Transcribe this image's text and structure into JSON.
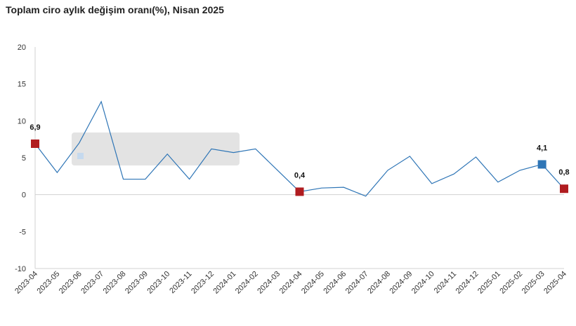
{
  "chart_data": {
    "type": "line",
    "title": "Toplam ciro aylık değişim oranı(%), Nisan 2025",
    "xlabel": "",
    "ylabel": "",
    "ylim": [
      -10,
      20
    ],
    "yticks": [
      20,
      15,
      10,
      5,
      0,
      -5,
      -10
    ],
    "categories": [
      "2023-04",
      "2023-05",
      "2023-06",
      "2023-07",
      "2023-08",
      "2023-09",
      "2023-10",
      "2023-11",
      "2023-12",
      "2024-01",
      "2024-02",
      "2024-03",
      "2024-04",
      "2024-05",
      "2024-06",
      "2024-07",
      "2024-08",
      "2024-09",
      "2024-10",
      "2024-11",
      "2024-12",
      "2025-01",
      "2025-02",
      "2025-03",
      "2025-04"
    ],
    "series": [
      {
        "name": "Toplam ciro aylık değişim oranı",
        "values": [
          6.9,
          3.0,
          7.0,
          12.6,
          2.1,
          2.1,
          5.5,
          2.1,
          6.2,
          5.7,
          6.2,
          3.3,
          0.4,
          0.9,
          1.0,
          -0.2,
          3.3,
          5.2,
          1.5,
          2.8,
          5.1,
          1.7,
          3.3,
          4.1,
          0.8
        ]
      }
    ],
    "highlights": [
      {
        "index": 0,
        "label": "6,9",
        "color": "#b01c20"
      },
      {
        "index": 12,
        "label": "0,4",
        "color": "#b01c20"
      },
      {
        "index": 23,
        "label": "4,1",
        "color": "#2e75b6"
      },
      {
        "index": 24,
        "label": "0,8",
        "color": "#b01c20"
      }
    ],
    "line_color": "#2e75b6"
  }
}
